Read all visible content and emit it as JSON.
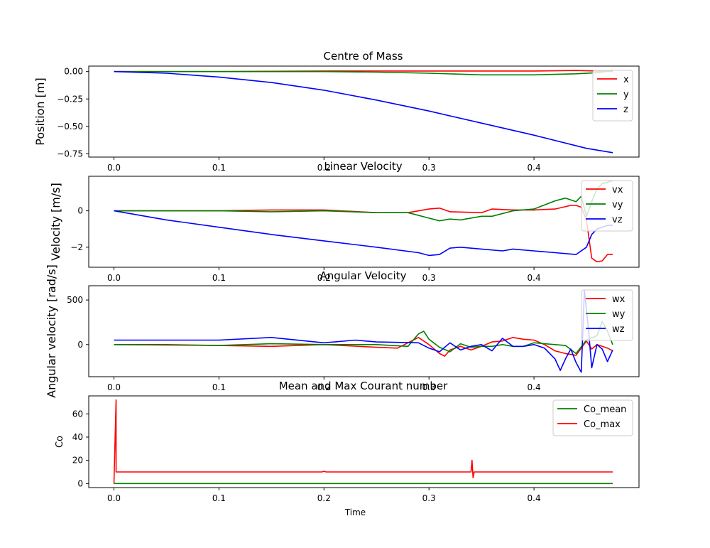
{
  "chart_data": [
    {
      "type": "line",
      "title": "Centre of Mass",
      "ylabel": "Position [m]",
      "xlabel": "",
      "xlim": [
        -0.024,
        0.5
      ],
      "ylim": [
        -0.78,
        0.05
      ],
      "xticks": [
        0.0,
        0.1,
        0.2,
        0.3,
        0.4
      ],
      "xtick_labels": [
        "0.0",
        "0.1",
        "0.2",
        "0.3",
        "0.4"
      ],
      "yticks": [
        0.0,
        -0.25,
        -0.5,
        -0.75
      ],
      "ytick_labels": [
        "0.00",
        "−0.25",
        "−0.50",
        "−0.75"
      ],
      "legend_position": "top-right",
      "series": [
        {
          "name": "x",
          "color": "#ff0000",
          "x": [
            0.0,
            0.1,
            0.2,
            0.3,
            0.35,
            0.4,
            0.44,
            0.46,
            0.475
          ],
          "y": [
            0.0,
            0.0,
            0.005,
            0.005,
            0.005,
            0.005,
            0.01,
            0.005,
            0.0
          ]
        },
        {
          "name": "y",
          "color": "#008000",
          "x": [
            0.0,
            0.1,
            0.2,
            0.25,
            0.3,
            0.35,
            0.4,
            0.44,
            0.46,
            0.475
          ],
          "y": [
            0.0,
            0.0,
            0.0,
            -0.005,
            -0.015,
            -0.03,
            -0.03,
            -0.02,
            -0.01,
            0.01
          ]
        },
        {
          "name": "z",
          "color": "#0000ff",
          "x": [
            0.0,
            0.05,
            0.1,
            0.15,
            0.2,
            0.25,
            0.3,
            0.35,
            0.4,
            0.45,
            0.475
          ],
          "y": [
            0.0,
            -0.015,
            -0.05,
            -0.1,
            -0.17,
            -0.26,
            -0.36,
            -0.47,
            -0.58,
            -0.7,
            -0.74
          ]
        }
      ]
    },
    {
      "type": "line",
      "title": "Linear Velocity",
      "ylabel": "Velocity [m/s]",
      "xlabel": "",
      "xlim": [
        -0.024,
        0.5
      ],
      "ylim": [
        -3.1,
        1.9
      ],
      "xticks": [
        0.0,
        0.1,
        0.2,
        0.3,
        0.4
      ],
      "xtick_labels": [
        "0.0",
        "0.1",
        "0.2",
        "0.3",
        "0.4"
      ],
      "yticks": [
        -2,
        0
      ],
      "ytick_labels": [
        "−2",
        "0"
      ],
      "legend_position": "top-right",
      "series": [
        {
          "name": "vx",
          "color": "#ff0000",
          "x": [
            0.0,
            0.1,
            0.15,
            0.2,
            0.25,
            0.28,
            0.3,
            0.31,
            0.32,
            0.35,
            0.36,
            0.38,
            0.4,
            0.42,
            0.435,
            0.44,
            0.445,
            0.45,
            0.455,
            0.46,
            0.465,
            0.47,
            0.475
          ],
          "y": [
            0.0,
            0.0,
            0.05,
            0.05,
            -0.1,
            -0.1,
            0.1,
            0.15,
            -0.05,
            -0.1,
            0.1,
            0.05,
            0.05,
            0.1,
            0.3,
            0.3,
            0.2,
            -0.5,
            -2.6,
            -2.8,
            -2.75,
            -2.4,
            -2.4
          ]
        },
        {
          "name": "vy",
          "color": "#008000",
          "x": [
            0.0,
            0.1,
            0.15,
            0.2,
            0.25,
            0.28,
            0.3,
            0.31,
            0.32,
            0.33,
            0.35,
            0.36,
            0.38,
            0.4,
            0.42,
            0.43,
            0.44,
            0.445,
            0.45,
            0.455,
            0.46,
            0.465,
            0.475
          ],
          "y": [
            0.0,
            0.0,
            -0.05,
            0.0,
            -0.1,
            -0.1,
            -0.4,
            -0.55,
            -0.45,
            -0.5,
            -0.3,
            -0.3,
            0.0,
            0.1,
            0.55,
            0.7,
            0.5,
            0.8,
            -0.3,
            0.5,
            1.2,
            1.5,
            1.65
          ]
        },
        {
          "name": "vz",
          "color": "#0000ff",
          "x": [
            0.0,
            0.05,
            0.1,
            0.15,
            0.2,
            0.25,
            0.29,
            0.3,
            0.31,
            0.32,
            0.33,
            0.35,
            0.37,
            0.38,
            0.4,
            0.42,
            0.44,
            0.45,
            0.455,
            0.46,
            0.47,
            0.475
          ],
          "y": [
            0.0,
            -0.5,
            -0.9,
            -1.3,
            -1.65,
            -2.0,
            -2.3,
            -2.45,
            -2.4,
            -2.05,
            -2.0,
            -2.1,
            -2.2,
            -2.1,
            -2.2,
            -2.3,
            -2.4,
            -2.0,
            -1.3,
            -1.0,
            -0.8,
            -0.8
          ]
        }
      ]
    },
    {
      "type": "line",
      "title": "Angular Velocity",
      "ylabel": "Angular velocity [rad/s]",
      "xlabel": "",
      "xlim": [
        -0.024,
        0.5
      ],
      "ylim": [
        -360,
        660
      ],
      "xticks": [
        0.0,
        0.1,
        0.2,
        0.3,
        0.4
      ],
      "xtick_labels": [
        "0.0",
        "0.1",
        "0.2",
        "0.3",
        "0.4"
      ],
      "yticks": [
        0,
        500
      ],
      "ytick_labels": [
        "0",
        "500"
      ],
      "legend_position": "top-right",
      "series": [
        {
          "name": "wx",
          "color": "#ff0000",
          "x": [
            0.0,
            0.05,
            0.1,
            0.15,
            0.2,
            0.25,
            0.27,
            0.29,
            0.3,
            0.31,
            0.315,
            0.32,
            0.33,
            0.34,
            0.35,
            0.36,
            0.37,
            0.38,
            0.39,
            0.4,
            0.41,
            0.42,
            0.43,
            0.44,
            0.445,
            0.45,
            0.455,
            0.46,
            0.47,
            0.475
          ],
          "y": [
            0,
            0,
            -10,
            -20,
            0,
            -30,
            -40,
            80,
            0,
            -100,
            -130,
            -60,
            -20,
            -60,
            -20,
            30,
            40,
            80,
            60,
            50,
            0,
            -70,
            -100,
            -120,
            -40,
            40,
            -50,
            0,
            -40,
            -70
          ]
        },
        {
          "name": "wy",
          "color": "#008000",
          "x": [
            0.0,
            0.1,
            0.15,
            0.2,
            0.25,
            0.28,
            0.29,
            0.295,
            0.3,
            0.31,
            0.32,
            0.33,
            0.34,
            0.35,
            0.36,
            0.37,
            0.38,
            0.39,
            0.4,
            0.42,
            0.43,
            0.44,
            0.45,
            0.46,
            0.465,
            0.47,
            0.475
          ],
          "y": [
            0,
            -10,
            10,
            0,
            0,
            -20,
            120,
            150,
            60,
            -30,
            -80,
            10,
            -30,
            -20,
            -20,
            0,
            -20,
            -20,
            20,
            0,
            -10,
            -100,
            50,
            100,
            260,
            150,
            0
          ]
        },
        {
          "name": "wz",
          "color": "#0000ff",
          "x": [
            0.0,
            0.1,
            0.15,
            0.2,
            0.23,
            0.25,
            0.29,
            0.3,
            0.31,
            0.32,
            0.33,
            0.34,
            0.35,
            0.36,
            0.37,
            0.38,
            0.39,
            0.4,
            0.41,
            0.42,
            0.425,
            0.43,
            0.435,
            0.44,
            0.445,
            0.448,
            0.452,
            0.455,
            0.46,
            0.465,
            0.47,
            0.475
          ],
          "y": [
            50,
            50,
            80,
            20,
            50,
            30,
            20,
            -40,
            -80,
            20,
            -60,
            -20,
            0,
            -70,
            70,
            -20,
            -20,
            0,
            -40,
            -160,
            -290,
            -160,
            -50,
            -200,
            -310,
            610,
            160,
            -260,
            0,
            -50,
            -190,
            -60
          ]
        }
      ]
    },
    {
      "type": "line",
      "title": "Mean and Max Courant number",
      "ylabel": "Co",
      "xlabel": "Time",
      "xlim": [
        -0.024,
        0.5
      ],
      "ylim": [
        -3.5,
        75.5
      ],
      "xticks": [
        0.0,
        0.1,
        0.2,
        0.3,
        0.4
      ],
      "xtick_labels": [
        "0.0",
        "0.1",
        "0.2",
        "0.3",
        "0.4"
      ],
      "yticks": [
        0,
        20,
        40,
        60
      ],
      "ytick_labels": [
        "0",
        "20",
        "40",
        "60"
      ],
      "legend_position": "top-right",
      "series": [
        {
          "name": "Co_mean",
          "color": "#008000",
          "x": [
            0.0,
            0.475
          ],
          "y": [
            0.0,
            0.0
          ]
        },
        {
          "name": "Co_max",
          "color": "#ff0000",
          "x": [
            0.0,
            0.002,
            0.002,
            0.003,
            0.198,
            0.2,
            0.202,
            0.34,
            0.341,
            0.342,
            0.343,
            0.475
          ],
          "y": [
            0.0,
            72.0,
            10.0,
            10.0,
            10.0,
            10.5,
            10.0,
            10.0,
            20.0,
            5.0,
            10.0,
            10.0
          ]
        }
      ]
    }
  ]
}
